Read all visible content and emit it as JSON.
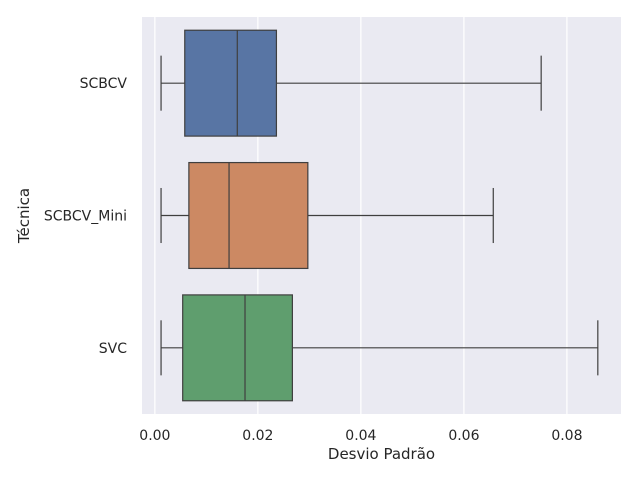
{
  "chart_data": {
    "type": "boxplot",
    "orientation": "horizontal",
    "title": "",
    "xlabel": "Desvio Padrão",
    "ylabel": "Técnica",
    "xlim": [
      -0.0025,
      0.0905
    ],
    "xticks": [
      0.0,
      0.02,
      0.04,
      0.06,
      0.08
    ],
    "xtick_labels": [
      "0.00",
      "0.02",
      "0.04",
      "0.06",
      "0.08"
    ],
    "grid": true,
    "categories": [
      "SCBCV",
      "SCBCV_Mini",
      "SVC"
    ],
    "boxes": [
      {
        "name": "SCBCV",
        "color": "#5875a4",
        "whislo": 0.0012,
        "q1": 0.0058,
        "median": 0.016,
        "q3": 0.0236,
        "whishi": 0.075
      },
      {
        "name": "SCBCV_Mini",
        "color": "#cc8963",
        "whislo": 0.0012,
        "q1": 0.0066,
        "median": 0.0144,
        "q3": 0.0297,
        "whishi": 0.0657
      },
      {
        "name": "SVC",
        "color": "#5f9e6e",
        "whislo": 0.0012,
        "q1": 0.0054,
        "median": 0.0175,
        "q3": 0.0267,
        "whishi": 0.086
      }
    ]
  }
}
